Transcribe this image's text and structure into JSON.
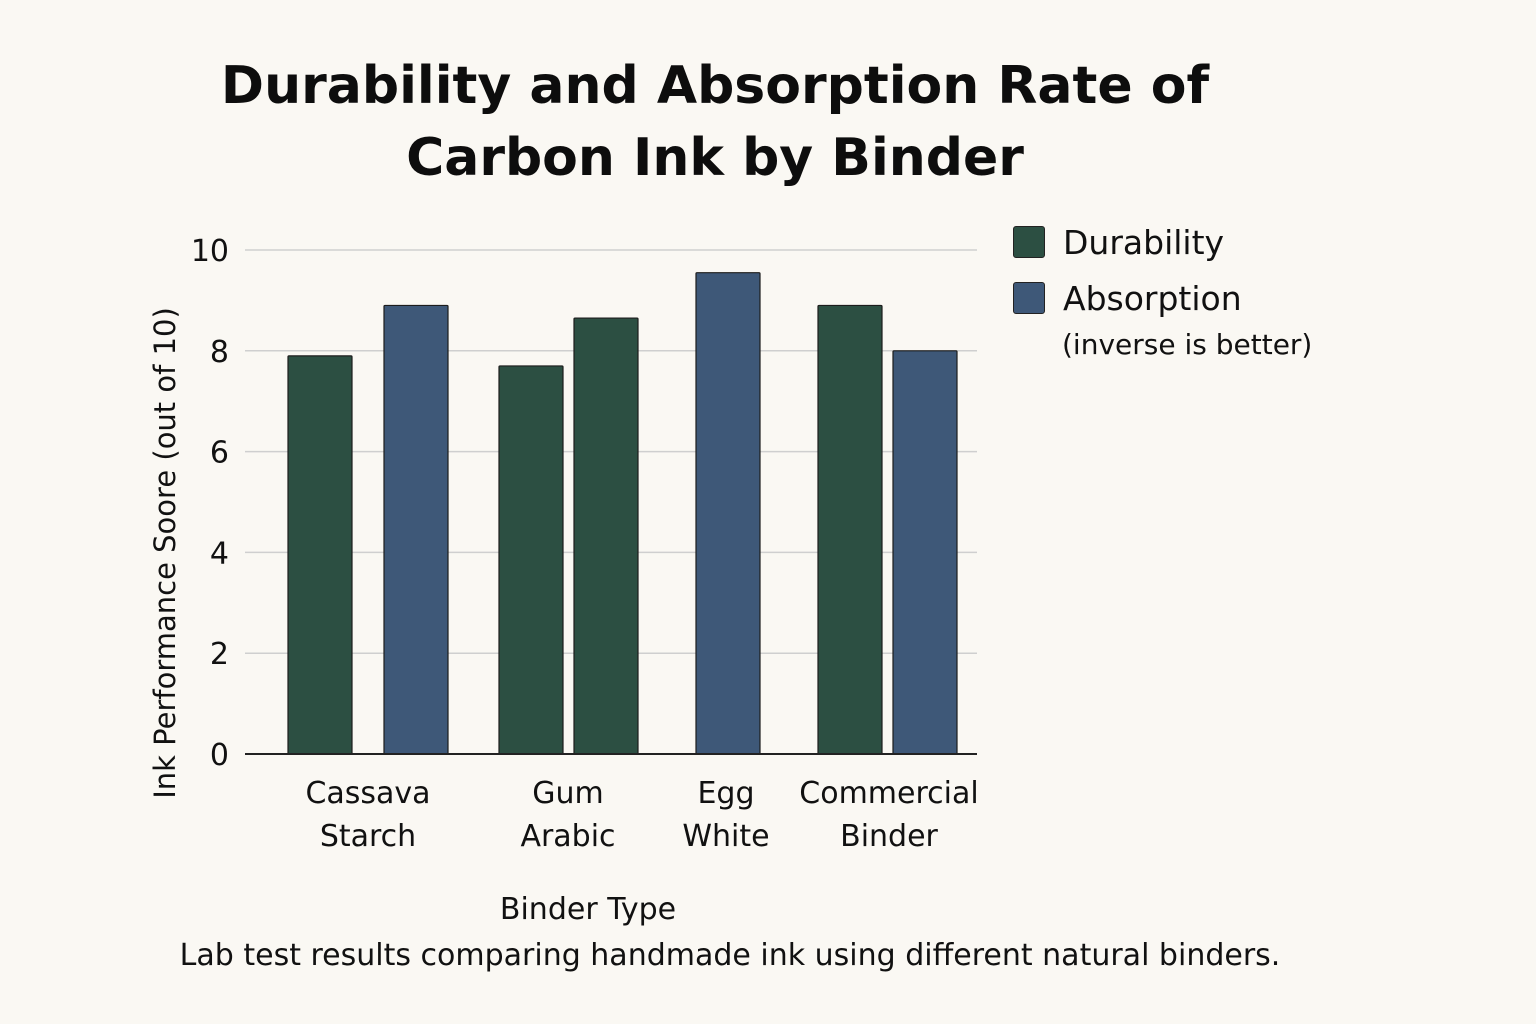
{
  "chart_data": {
    "type": "bar",
    "title_lines": [
      "Durability and Absorption Rate of",
      "Carbon Ink by Binder"
    ],
    "xlabel": "Binder Type",
    "ylabel": "Ink Performance Soore (out of 10)",
    "ylim": [
      0,
      10
    ],
    "yticks": [
      0,
      2,
      4,
      6,
      8,
      10
    ],
    "grid": true,
    "legend_position": "right",
    "categories": [
      [
        "Cassava",
        "Starch"
      ],
      [
        "Gum",
        "Arabic"
      ],
      [
        "Egg",
        "White"
      ],
      [
        "Commercial",
        "Binder"
      ]
    ],
    "series": [
      {
        "name": "Durability",
        "color": "#2c4f42",
        "values": [
          7.9,
          7.7,
          null,
          8.9
        ]
      },
      {
        "name": "Absorption",
        "color": "#3e5878",
        "values": [
          8.9,
          8.65,
          9.55,
          8.0
        ]
      }
    ],
    "bar_colors_by_category": [
      [
        "#2c4f42",
        "#3e5878"
      ],
      [
        "#2c4f42",
        "#2c4f42"
      ],
      [
        null,
        "#3e5878"
      ],
      [
        "#2c4f42",
        "#3e5878"
      ]
    ],
    "legend_note": "(inverse is better)",
    "caption": "Lab test results comparing handmade ink using different natural binders."
  }
}
